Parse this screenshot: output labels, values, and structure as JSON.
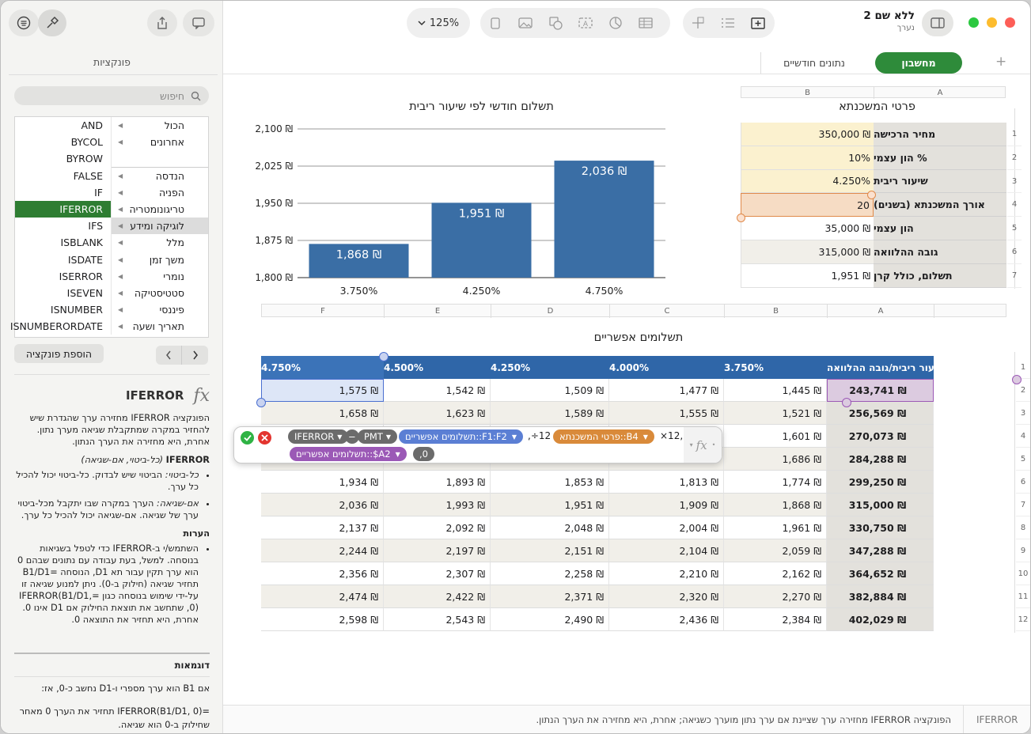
{
  "window": {
    "title": "ללא שם 2",
    "subtitle": "נערך",
    "zoom": "125%"
  },
  "toolbar": {
    "icons": [
      "list-icon",
      "brush-icon",
      "share-icon",
      "comment-icon",
      "zoom-chevron-icon",
      "text-icon",
      "media-icon",
      "shape-icon",
      "textbox-icon",
      "chart-icon",
      "table-icon",
      "pivot-icon",
      "format-icon",
      "add-sheet-icon",
      "sidebar-icon"
    ]
  },
  "sheets": {
    "active": "מחשבון",
    "other": "נתונים חודשיים",
    "add": "+"
  },
  "sidebar": {
    "title": "פונקציות",
    "search_placeholder": "חיפוש",
    "categories": [
      "הכול",
      "אחרונים",
      "",
      "הנדסה",
      "הפניה",
      "טריגונומטריה",
      "לוגיקה ומידע",
      "מלל",
      "משך זמן",
      "נומרי",
      "סטטיסטיקה",
      "פיננסי",
      "תאריך ושעה"
    ],
    "functions": [
      "AND",
      "BYCOL",
      "BYROW",
      "FALSE",
      "IF",
      "IFERROR",
      "IFS",
      "ISBLANK",
      "ISDATE",
      "ISERROR",
      "ISEVEN",
      "ISNUMBER",
      "ISNUMBERORDATE"
    ],
    "add_button": "הוספת פונקציה",
    "fn_name": "IFERROR",
    "fx": "fx",
    "desc": "הפונקציה IFERROR מחזירה ערך שהגדרת שיש להחזיר במקרה שמתקבלת שגיאה מערך נתון. אחרת, היא מחזירה את הערך הנתון.",
    "syntax_name": "IFERROR",
    "syntax_args": "(כל-ביטוי, אם-שגיאה)",
    "arg1_term": "כל-ביטוי:",
    "arg1_text": " הביטוי שיש לבדוק. כל-ביטוי יכול להכיל כל ערך.",
    "arg2_term": "אם-שגיאה:",
    "arg2_text": " הערך במקרה שבו יתקבל מכל-ביטוי ערך של שגיאה. אם-שגיאה יכול להכיל כל ערך.",
    "notes_title": "הערות",
    "notes_text": "השתמש/י ב-IFERROR כדי לטפל בשגיאות בנוסחה. למשל, בעת עבודה עם נתונים שבהם 0 הוא ערך תקין עבור תא D1, הנוסחה =B1/D1 תחזיר שגיאה (חילוק ב-0). ניתן למנוע שגיאה זו על-ידי שימוש בנוסחה כגון =IFERROR(B1/D1, 0), שתחשב את תוצאת החילוק אם D1 אינו 0. אחרת, היא תחזיר את התוצאה 0.",
    "examples_title": "דוגמאות",
    "example1": "אם B1 הוא ערך מספרי ו-D1 נחשב כ-0, אז:",
    "example2": "=IFERROR(B1/D1, 0) תחזיר את הערך 0 מאחר שחילוק ב-0 הוא שגיאה."
  },
  "table1": {
    "title": "פרטי המשכנתא",
    "col_headers": [
      "A",
      "B"
    ],
    "rows": [
      {
        "n": "1",
        "label": "מחיר הרכישה",
        "value": "350,000 ₪"
      },
      {
        "n": "2",
        "label": "% הון עצמי",
        "value": "10%"
      },
      {
        "n": "3",
        "label": "שיעור ריבית",
        "value": "4.250%"
      },
      {
        "n": "4",
        "label": "אורך המשכנתא (בשנים)",
        "value": "20"
      },
      {
        "n": "5",
        "label": "הון עצמי",
        "value": "35,000 ₪"
      },
      {
        "n": "6",
        "label": "גובה ההלוואה",
        "value": "315,000 ₪"
      },
      {
        "n": "7",
        "label": "תשלום, כולל קרן",
        "value": "1,951 ₪"
      }
    ]
  },
  "chart_data": {
    "type": "bar",
    "title": "תשלום חודשי לפי שיעור ריבית",
    "categories": [
      "3.750%",
      "4.250%",
      "4.750%"
    ],
    "values": [
      1868,
      1951,
      2036
    ],
    "value_labels": [
      "1,868 ₪",
      "1,951 ₪",
      "2,036 ₪"
    ],
    "yticks": [
      "2,100 ₪",
      "2,025 ₪",
      "1,950 ₪",
      "1,875 ₪",
      "1,800 ₪"
    ],
    "ylim": [
      1800,
      2100
    ],
    "grid": true,
    "color": "#3a6ea5"
  },
  "table2": {
    "title": "תשלומים אפשריים",
    "col_headers": [
      "A",
      "B",
      "C",
      "D",
      "E",
      "F"
    ],
    "header_row": [
      "שיעור ריבית/גובה ההלוואה",
      "3.750%",
      "4.000%",
      "4.250%",
      "4.500%",
      "4.750%"
    ],
    "rows": [
      {
        "n": "2",
        "cells": [
          "243,741 ₪",
          "1,445 ₪",
          "1,477 ₪",
          "1,509 ₪",
          "1,542 ₪",
          "1,575 ₪"
        ]
      },
      {
        "n": "3",
        "cells": [
          "256,569 ₪",
          "1,521 ₪",
          "1,555 ₪",
          "1,589 ₪",
          "1,623 ₪",
          "1,658 ₪"
        ]
      },
      {
        "n": "4",
        "cells": [
          "270,073 ₪",
          "1,601 ₪",
          "",
          "",
          "",
          ""
        ]
      },
      {
        "n": "5",
        "cells": [
          "284,288 ₪",
          "1,686 ₪",
          "",
          "",
          "",
          ""
        ]
      },
      {
        "n": "6",
        "cells": [
          "299,250 ₪",
          "1,774 ₪",
          "1,813 ₪",
          "1,853 ₪",
          "1,893 ₪",
          "1,934 ₪"
        ]
      },
      {
        "n": "7",
        "cells": [
          "315,000 ₪",
          "1,868 ₪",
          "1,909 ₪",
          "1,951 ₪",
          "1,993 ₪",
          "2,036 ₪"
        ]
      },
      {
        "n": "8",
        "cells": [
          "330,750 ₪",
          "1,961 ₪",
          "2,004 ₪",
          "2,048 ₪",
          "2,092 ₪",
          "2,137 ₪"
        ]
      },
      {
        "n": "9",
        "cells": [
          "347,288 ₪",
          "2,059 ₪",
          "2,104 ₪",
          "2,151 ₪",
          "2,197 ₪",
          "2,244 ₪"
        ]
      },
      {
        "n": "10",
        "cells": [
          "364,652 ₪",
          "2,162 ₪",
          "2,210 ₪",
          "2,258 ₪",
          "2,307 ₪",
          "2,356 ₪"
        ]
      },
      {
        "n": "11",
        "cells": [
          "382,884 ₪",
          "2,270 ₪",
          "2,320 ₪",
          "2,371 ₪",
          "2,422 ₪",
          "2,474 ₪"
        ]
      },
      {
        "n": "12",
        "cells": [
          "402,029 ₪",
          "2,384 ₪",
          "2,436 ₪",
          "2,490 ₪",
          "2,543 ₪",
          "2,598 ₪"
        ]
      }
    ]
  },
  "formula": {
    "iferror": "IFERROR",
    "minus": "−",
    "pmt": "PMT",
    "ref1": "תשלומים אפשריים::F1:F2",
    "div": ",÷12",
    "ref2": "פרטי המשכנתא::B4",
    "times": "×12,",
    "ref3": "תשלומים אפשריים::$A2",
    "tail": ",0",
    "fx": "fx"
  },
  "footer": {
    "fn": "IFERROR",
    "text": "הפונקציה IFERROR מחזירה ערך שציינת אם ערך נתון מוערך כשגיאה; אחרת, היא מחזירה את הערך הנתון."
  }
}
